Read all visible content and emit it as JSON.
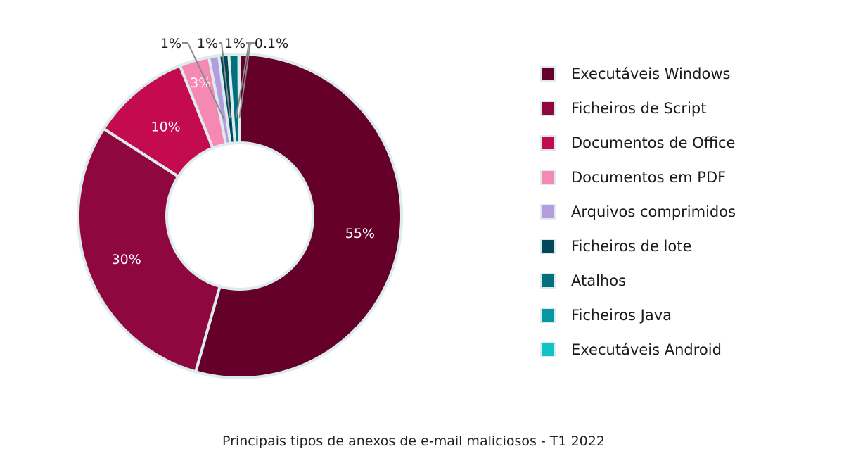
{
  "chart_data": {
    "type": "pie",
    "donut": true,
    "title": "Principais tipos de anexos de e-mail maliciosos - T1 2022",
    "legend_position": "right",
    "categories": [
      "Executáveis Windows",
      "Ficheiros de Script",
      "Documentos de Office",
      "Documentos em PDF",
      "Arquivos comprimidos",
      "Ficheiros de lote",
      "Atalhos",
      "Ficheiros Java",
      "Executáveis Android"
    ],
    "values": [
      55,
      30,
      10,
      3,
      1,
      1,
      1,
      0.1,
      0
    ],
    "labels": [
      "55%",
      "30%",
      "10%",
      "3%",
      "1%",
      "1%",
      "1%",
      "0.1%",
      ""
    ],
    "colors": [
      "#64002a",
      "#8f073f",
      "#c40b50",
      "#f589b4",
      "#b39ddf",
      "#00475a",
      "#026f7c",
      "#0696a3",
      "#13c1c8"
    ]
  }
}
